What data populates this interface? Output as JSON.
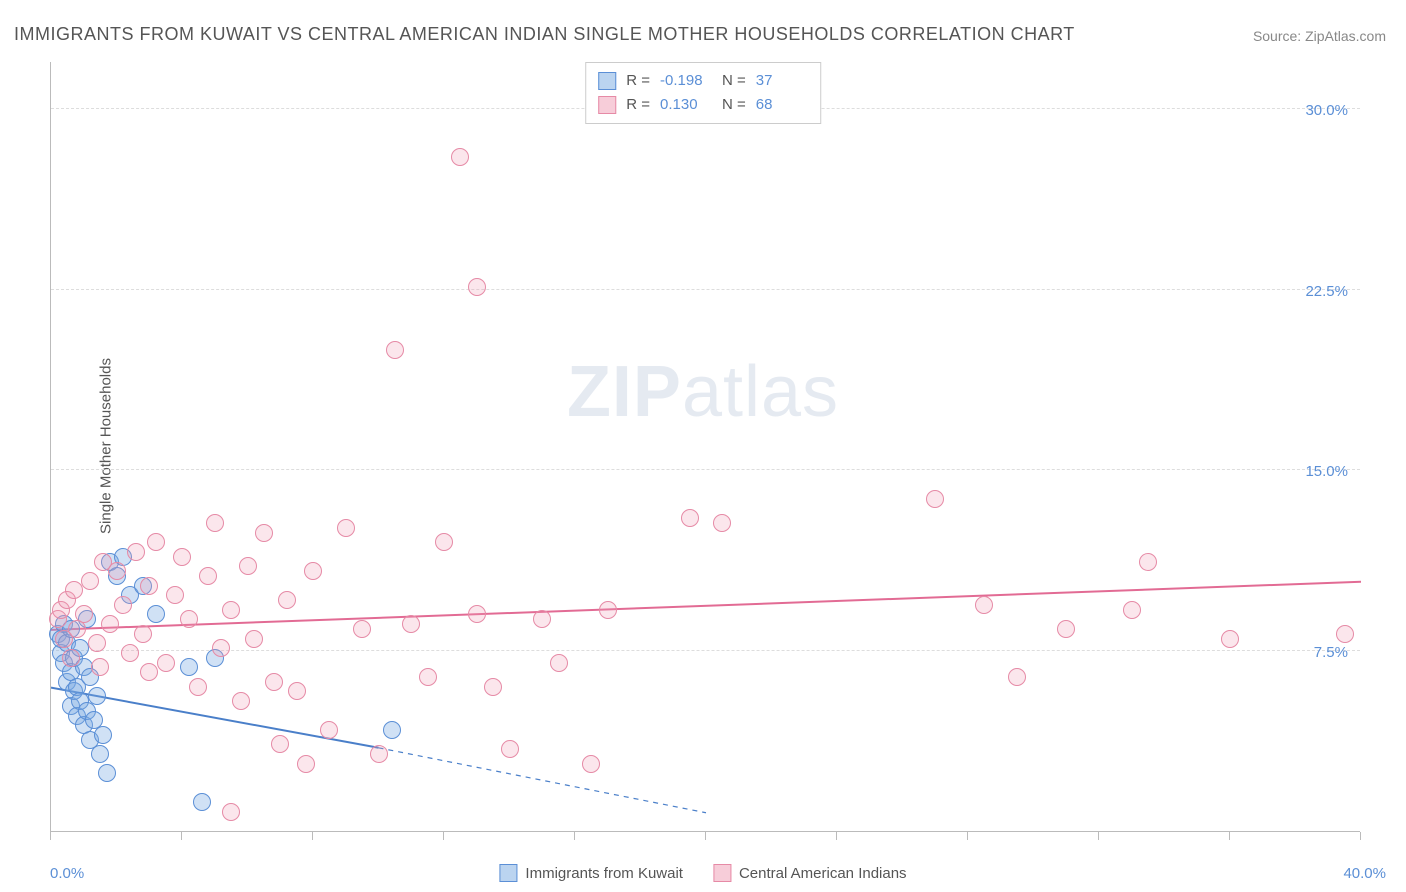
{
  "title": "IMMIGRANTS FROM KUWAIT VS CENTRAL AMERICAN INDIAN SINGLE MOTHER HOUSEHOLDS CORRELATION CHART",
  "source": "Source: ZipAtlas.com",
  "ylabel": "Single Mother Households",
  "watermark_a": "ZIP",
  "watermark_b": "atlas",
  "chart": {
    "type": "scatter",
    "xlim": [
      0,
      40
    ],
    "ylim": [
      0,
      32
    ],
    "yticks": [
      {
        "v": 7.5,
        "label": "7.5%"
      },
      {
        "v": 15.0,
        "label": "15.0%"
      },
      {
        "v": 22.5,
        "label": "22.5%"
      },
      {
        "v": 30.0,
        "label": "30.0%"
      }
    ],
    "xtick_label_min": "0.0%",
    "xtick_label_max": "40.0%",
    "xtick_marks": [
      0,
      4,
      8,
      12,
      16,
      20,
      24,
      28,
      32,
      36,
      40
    ],
    "grid_color": "#dddddd",
    "axis_color": "#bbbbbb",
    "background_color": "#ffffff",
    "point_radius": 9,
    "series": [
      {
        "name": "Immigrants from Kuwait",
        "color_fill": "rgba(120,170,225,0.35)",
        "color_stroke": "#5b8fd6",
        "class": "series-blue",
        "R": "-0.198",
        "N": "37",
        "trend": {
          "x1": 0,
          "y1": 6.0,
          "x2_solid": 10,
          "y2_solid": 3.5,
          "x2_dash": 20,
          "y2_dash": 0.8,
          "stroke": "#4a7fc9",
          "width": 2
        },
        "points": [
          [
            0.2,
            8.2
          ],
          [
            0.3,
            7.4
          ],
          [
            0.3,
            8.0
          ],
          [
            0.4,
            7.0
          ],
          [
            0.4,
            8.6
          ],
          [
            0.5,
            6.2
          ],
          [
            0.5,
            7.8
          ],
          [
            0.6,
            5.2
          ],
          [
            0.6,
            6.6
          ],
          [
            0.6,
            8.4
          ],
          [
            0.7,
            5.8
          ],
          [
            0.7,
            7.2
          ],
          [
            0.8,
            4.8
          ],
          [
            0.8,
            6.0
          ],
          [
            0.9,
            5.4
          ],
          [
            0.9,
            7.6
          ],
          [
            1.0,
            4.4
          ],
          [
            1.0,
            6.8
          ],
          [
            1.1,
            5.0
          ],
          [
            1.1,
            8.8
          ],
          [
            1.2,
            3.8
          ],
          [
            1.2,
            6.4
          ],
          [
            1.3,
            4.6
          ],
          [
            1.4,
            5.6
          ],
          [
            1.5,
            3.2
          ],
          [
            1.6,
            4.0
          ],
          [
            1.8,
            11.2
          ],
          [
            2.0,
            10.6
          ],
          [
            2.2,
            11.4
          ],
          [
            2.4,
            9.8
          ],
          [
            2.8,
            10.2
          ],
          [
            3.2,
            9.0
          ],
          [
            4.2,
            6.8
          ],
          [
            4.6,
            1.2
          ],
          [
            5.0,
            7.2
          ],
          [
            10.4,
            4.2
          ],
          [
            1.7,
            2.4
          ]
        ]
      },
      {
        "name": "Central American Indians",
        "color_fill": "rgba(240,155,180,0.25)",
        "color_stroke": "#e68aa6",
        "class": "series-pink",
        "R": "0.130",
        "N": "68",
        "trend": {
          "x1": 0,
          "y1": 8.4,
          "x2_solid": 40,
          "y2_solid": 10.4,
          "stroke": "#e26b94",
          "width": 2
        },
        "points": [
          [
            0.2,
            8.8
          ],
          [
            0.3,
            9.2
          ],
          [
            0.4,
            8.0
          ],
          [
            0.5,
            9.6
          ],
          [
            0.6,
            7.2
          ],
          [
            0.7,
            10.0
          ],
          [
            0.8,
            8.4
          ],
          [
            1.0,
            9.0
          ],
          [
            1.2,
            10.4
          ],
          [
            1.4,
            7.8
          ],
          [
            1.6,
            11.2
          ],
          [
            1.8,
            8.6
          ],
          [
            2.0,
            10.8
          ],
          [
            2.2,
            9.4
          ],
          [
            2.4,
            7.4
          ],
          [
            2.6,
            11.6
          ],
          [
            2.8,
            8.2
          ],
          [
            3.0,
            10.2
          ],
          [
            3.2,
            12.0
          ],
          [
            3.5,
            7.0
          ],
          [
            3.8,
            9.8
          ],
          [
            4.0,
            11.4
          ],
          [
            4.2,
            8.8
          ],
          [
            4.5,
            6.0
          ],
          [
            4.8,
            10.6
          ],
          [
            5.0,
            12.8
          ],
          [
            5.2,
            7.6
          ],
          [
            5.5,
            9.2
          ],
          [
            5.8,
            5.4
          ],
          [
            6.0,
            11.0
          ],
          [
            6.2,
            8.0
          ],
          [
            6.5,
            12.4
          ],
          [
            6.8,
            6.2
          ],
          [
            7.0,
            3.6
          ],
          [
            7.2,
            9.6
          ],
          [
            7.5,
            5.8
          ],
          [
            7.8,
            2.8
          ],
          [
            8.0,
            10.8
          ],
          [
            8.5,
            4.2
          ],
          [
            9.0,
            12.6
          ],
          [
            9.5,
            8.4
          ],
          [
            10.0,
            3.2
          ],
          [
            10.5,
            20.0
          ],
          [
            11.0,
            8.6
          ],
          [
            11.5,
            6.4
          ],
          [
            12.0,
            12.0
          ],
          [
            12.5,
            28.0
          ],
          [
            13.0,
            9.0
          ],
          [
            13.0,
            22.6
          ],
          [
            13.5,
            6.0
          ],
          [
            14.0,
            3.4
          ],
          [
            15.0,
            8.8
          ],
          [
            15.5,
            7.0
          ],
          [
            16.5,
            2.8
          ],
          [
            17.0,
            9.2
          ],
          [
            19.5,
            13.0
          ],
          [
            20.5,
            12.8
          ],
          [
            27.0,
            13.8
          ],
          [
            28.5,
            9.4
          ],
          [
            29.5,
            6.4
          ],
          [
            31.0,
            8.4
          ],
          [
            33.0,
            9.2
          ],
          [
            33.5,
            11.2
          ],
          [
            36.0,
            8.0
          ],
          [
            39.5,
            8.2
          ],
          [
            5.5,
            0.8
          ],
          [
            3.0,
            6.6
          ],
          [
            1.5,
            6.8
          ]
        ]
      }
    ]
  },
  "legend_box": {
    "rows": [
      {
        "swatch": "blue",
        "r_label": "R =",
        "r_val": "-0.198",
        "n_label": "N =",
        "n_val": "37"
      },
      {
        "swatch": "pink",
        "r_label": "R =",
        "r_val": "0.130",
        "n_label": "N =",
        "n_val": "68"
      }
    ]
  },
  "bottom_legend": [
    {
      "swatch": "blue",
      "label": "Immigrants from Kuwait"
    },
    {
      "swatch": "pink",
      "label": "Central American Indians"
    }
  ]
}
